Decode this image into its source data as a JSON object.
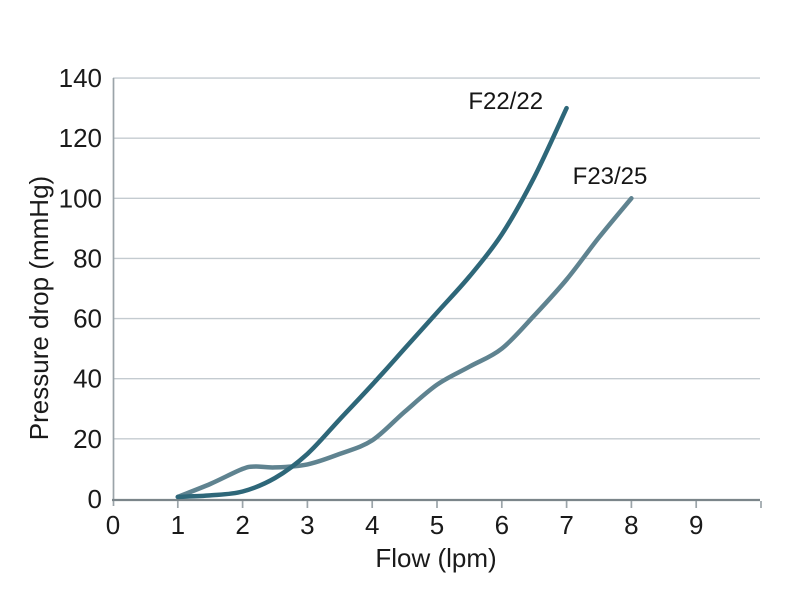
{
  "chart_data": {
    "type": "line",
    "title": "",
    "xlabel": "Flow (lpm)",
    "ylabel": "Pressure drop (mmHg)",
    "xlim": [
      0,
      10
    ],
    "ylim": [
      0,
      140
    ],
    "grid": "horizontal",
    "legend_position": "inline-labels",
    "xtick_values": [
      0,
      1,
      2,
      3,
      4,
      5,
      6,
      7,
      8,
      9,
      10
    ],
    "xtick_labels": [
      "0",
      "1",
      "2",
      "3",
      "4",
      "5",
      "6",
      "7",
      "8",
      "9",
      ""
    ],
    "ytick_values": [
      0,
      20,
      40,
      60,
      80,
      100,
      120,
      140
    ],
    "ytick_labels": [
      "0",
      "20",
      "40",
      "60",
      "80",
      "100",
      "120",
      "140"
    ],
    "series": [
      {
        "name": "F23/25",
        "color": "#5f8390",
        "label_text": "F23/25",
        "label_at": {
          "x": 7.67,
          "y": 107.7
        },
        "points": [
          [
            1,
            0.7
          ],
          [
            1.5,
            5
          ],
          [
            2,
            10
          ],
          [
            2.2,
            10.8
          ],
          [
            2.5,
            10.5
          ],
          [
            3,
            11.5
          ],
          [
            3.5,
            15
          ],
          [
            4,
            19.5
          ],
          [
            4.5,
            29
          ],
          [
            5,
            38
          ],
          [
            5.5,
            44
          ],
          [
            6,
            50
          ],
          [
            6.5,
            61
          ],
          [
            7,
            73
          ],
          [
            7.5,
            87
          ],
          [
            8,
            100
          ]
        ]
      },
      {
        "name": "F22/22",
        "color": "#2e6779",
        "label_text": "F22/22",
        "label_at": {
          "x": 6.06,
          "y": 132.7
        },
        "points": [
          [
            1,
            0.7
          ],
          [
            1.5,
            1.2
          ],
          [
            2,
            2.5
          ],
          [
            2.5,
            7
          ],
          [
            3,
            15
          ],
          [
            3.5,
            26.5
          ],
          [
            4,
            38
          ],
          [
            4.5,
            50
          ],
          [
            5,
            62
          ],
          [
            5.5,
            74
          ],
          [
            6,
            88
          ],
          [
            6.5,
            107
          ],
          [
            7,
            130
          ]
        ]
      }
    ],
    "colors": {
      "background": "#ffffff",
      "gridline": "#c4cbd0",
      "axis_line": "#7b858a",
      "spine": "#9ba4a9",
      "tick_mark": "#9ba4a9",
      "text": "#1a1a1a"
    }
  }
}
